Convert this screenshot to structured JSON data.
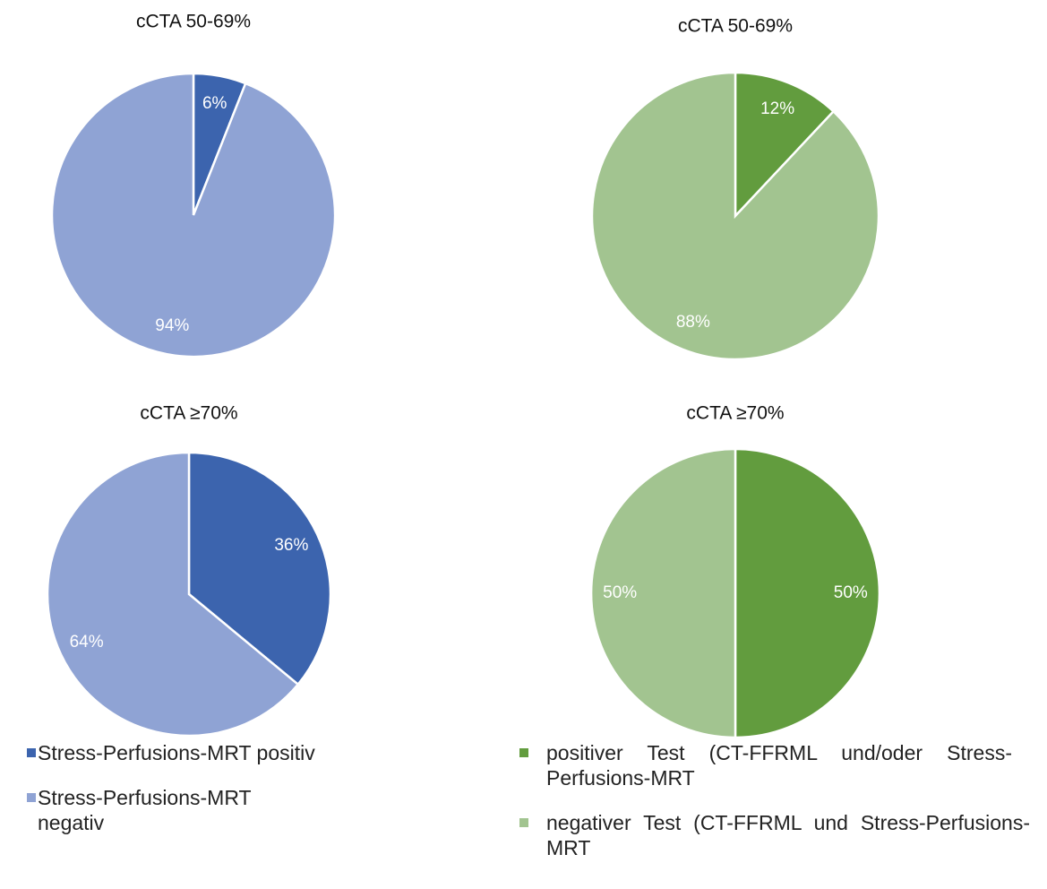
{
  "chart_data": [
    {
      "type": "pie",
      "title": "cCTA 50-69%",
      "categories": [
        "Stress-Perfusions-MRT positiv",
        "Stress-Perfusions-MRT negativ"
      ],
      "values": [
        6,
        94
      ],
      "value_labels": [
        "6%",
        "94%"
      ],
      "colors": [
        "#3c64ae",
        "#8fa3d4"
      ]
    },
    {
      "type": "pie",
      "title": "cCTA 50-69%",
      "categories": [
        "positiver Test (CT-FFRML und/oder Stress-Perfusions-MRT",
        "negativer Test (CT-FFRML und Stress-Perfusions-MRT"
      ],
      "values": [
        12,
        88
      ],
      "value_labels": [
        "12%",
        "88%"
      ],
      "colors": [
        "#629c3e",
        "#a2c490"
      ]
    },
    {
      "type": "pie",
      "title": "cCTA ≥70%",
      "categories": [
        "Stress-Perfusions-MRT positiv",
        "Stress-Perfusions-MRT negativ"
      ],
      "values": [
        36,
        64
      ],
      "value_labels": [
        "36%",
        "64%"
      ],
      "colors": [
        "#3c64ae",
        "#8fa3d4"
      ]
    },
    {
      "type": "pie",
      "title": "cCTA ≥70%",
      "categories": [
        "positiver Test (CT-FFRML und/oder Stress-Perfusions-MRT",
        "negativer Test (CT-FFRML und Stress-Perfusions-MRT"
      ],
      "values": [
        50,
        50
      ],
      "value_labels": [
        "50%",
        "50%"
      ],
      "colors": [
        "#629c3e",
        "#a2c490"
      ]
    }
  ]
}
